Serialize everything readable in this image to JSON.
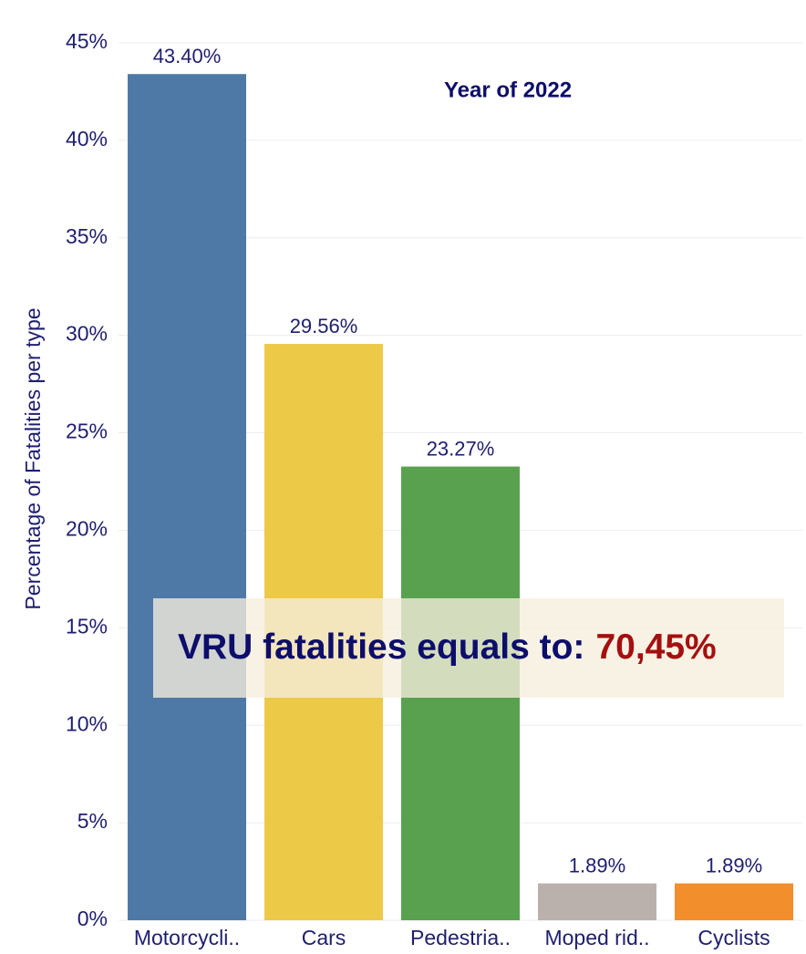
{
  "chart_data": {
    "type": "bar",
    "subtitle": "Year of 2022",
    "y_label": "Percentage of Fatalities per type",
    "categories": [
      "Motorcycli..",
      "Cars",
      "Pedestria..",
      "Moped rid..",
      "Cyclists"
    ],
    "values": [
      43.4,
      29.56,
      23.27,
      1.89,
      1.89
    ],
    "value_labels": [
      "43.40%",
      "29.56%",
      "23.27%",
      "1.89%",
      "1.89%"
    ],
    "colors": [
      "#4e79a7",
      "#edc948",
      "#59a14f",
      "#bab0ac",
      "#f28e2b"
    ],
    "ylim": [
      0,
      45
    ],
    "yticks": [
      {
        "value": 0,
        "label": "0%"
      },
      {
        "value": 5,
        "label": "5%"
      },
      {
        "value": 10,
        "label": "10%"
      },
      {
        "value": 15,
        "label": "15%"
      },
      {
        "value": 20,
        "label": "20%"
      },
      {
        "value": 25,
        "label": "25%"
      },
      {
        "value": 30,
        "label": "30%"
      },
      {
        "value": 35,
        "label": "35%"
      },
      {
        "value": 40,
        "label": "40%"
      },
      {
        "value": 45,
        "label": "45%"
      }
    ],
    "grid": true,
    "annotation": {
      "text": "VRU fatalities equals to:",
      "value": "70,45%"
    }
  }
}
